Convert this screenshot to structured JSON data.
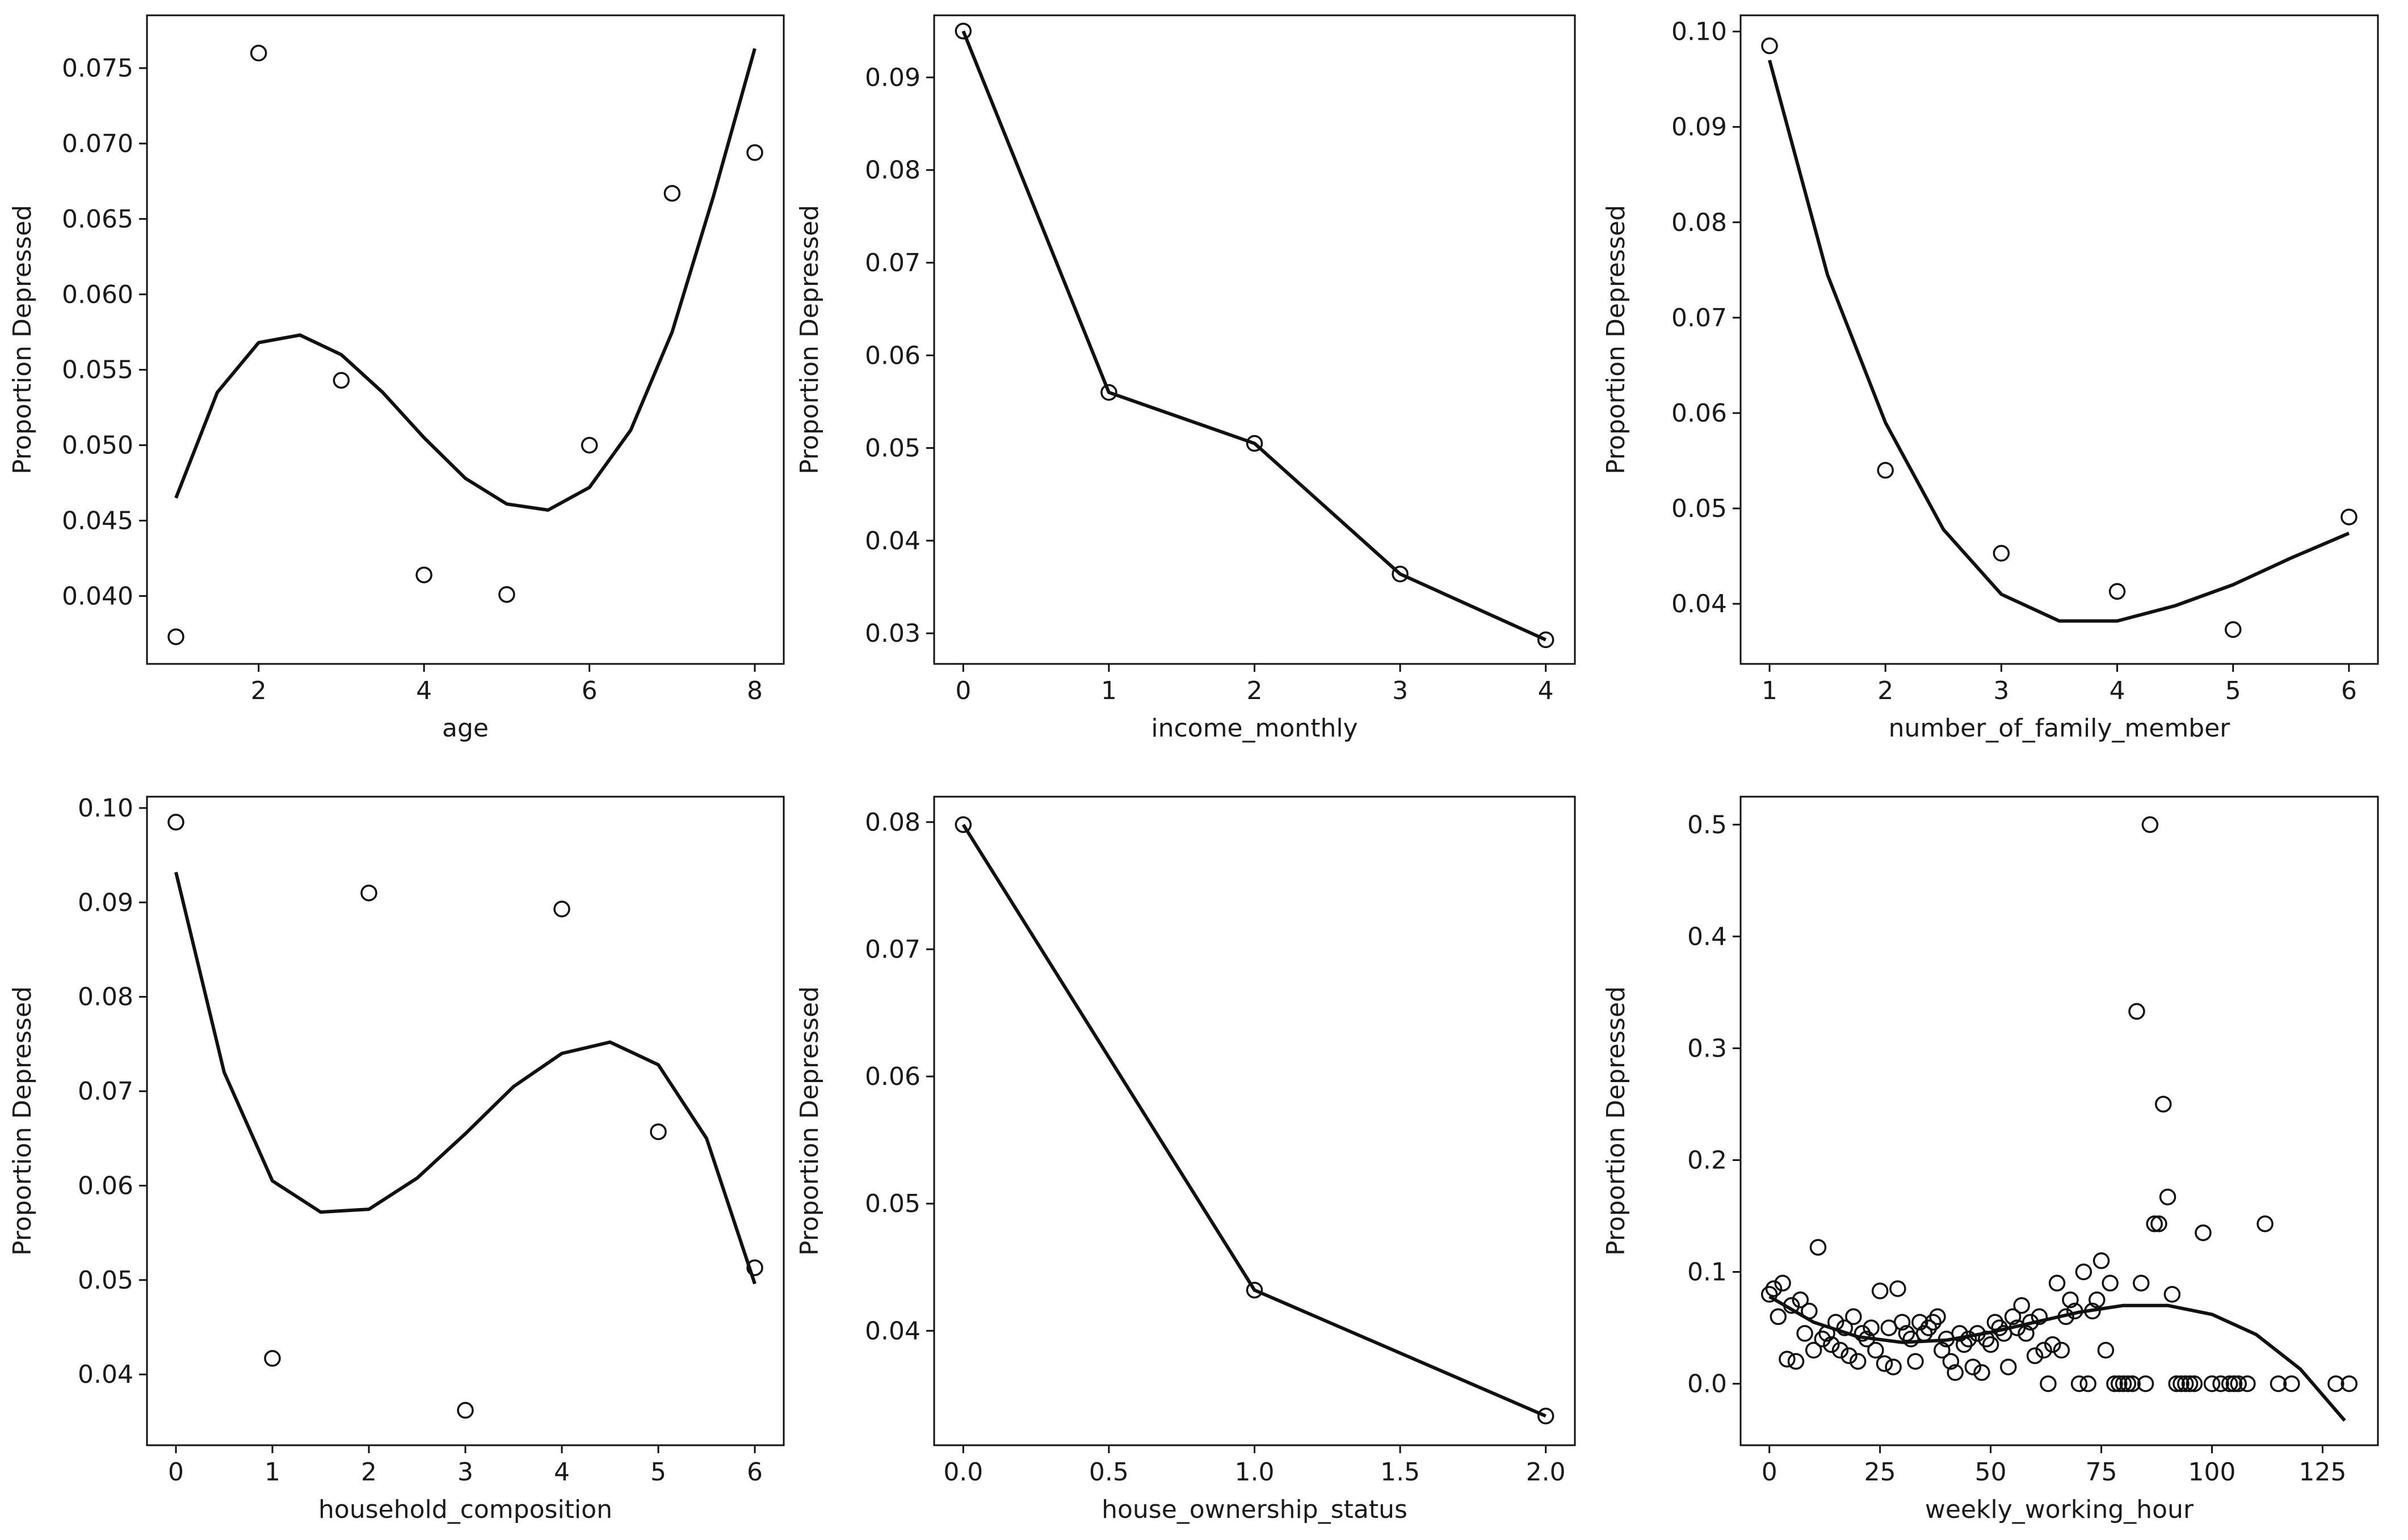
{
  "chart_data": [
    {
      "type": "scatter",
      "xlabel": "age",
      "ylabel": "Proportion Depressed",
      "xlim": [
        0.65,
        8.35
      ],
      "ylim": [
        0.0355,
        0.0785
      ],
      "xticks": [
        2,
        4,
        6,
        8
      ],
      "xtick_labels": [
        "2",
        "4",
        "6",
        "8"
      ],
      "yticks": [
        0.04,
        0.045,
        0.05,
        0.055,
        0.06,
        0.065,
        0.07,
        0.075
      ],
      "ytick_labels": [
        "0.040",
        "0.045",
        "0.050",
        "0.055",
        "0.060",
        "0.065",
        "0.070",
        "0.075"
      ],
      "points": {
        "x": [
          1,
          2,
          3,
          4,
          5,
          6,
          7,
          8
        ],
        "y": [
          0.0373,
          0.076,
          0.0543,
          0.0414,
          0.0401,
          0.05,
          0.0667,
          0.0694
        ]
      },
      "trend": {
        "kind": "polynomial fit",
        "x": [
          1,
          1.5,
          2,
          2.5,
          3,
          3.5,
          4,
          4.5,
          5,
          5.5,
          6,
          6.5,
          7,
          7.5,
          8
        ],
        "y": [
          0.0465,
          0.0535,
          0.0568,
          0.0573,
          0.056,
          0.0535,
          0.0505,
          0.0478,
          0.0461,
          0.0457,
          0.0472,
          0.051,
          0.0575,
          0.0665,
          0.0763
        ]
      }
    },
    {
      "type": "line",
      "xlabel": "income_monthly",
      "ylabel": "Proportion Depressed",
      "xlim": [
        -0.2,
        4.2
      ],
      "ylim": [
        0.0267,
        0.0967
      ],
      "xticks": [
        0,
        1,
        2,
        3,
        4
      ],
      "xtick_labels": [
        "0",
        "1",
        "2",
        "3",
        "4"
      ],
      "yticks": [
        0.03,
        0.04,
        0.05,
        0.06,
        0.07,
        0.08,
        0.09
      ],
      "ytick_labels": [
        "0.03",
        "0.04",
        "0.05",
        "0.06",
        "0.07",
        "0.08",
        "0.09"
      ],
      "points": {
        "x": [
          0,
          1,
          2,
          3,
          4
        ],
        "y": [
          0.095,
          0.056,
          0.0505,
          0.0364,
          0.0293
        ]
      },
      "trend": {
        "kind": "connected line",
        "x": [
          0,
          1,
          2,
          3,
          4
        ],
        "y": [
          0.095,
          0.056,
          0.0505,
          0.0364,
          0.0293
        ]
      }
    },
    {
      "type": "scatter",
      "xlabel": "number_of_family_member",
      "ylabel": "Proportion Depressed",
      "xlim": [
        0.75,
        6.25
      ],
      "ylim": [
        0.0337,
        0.1017
      ],
      "xticks": [
        1,
        2,
        3,
        4,
        5,
        6
      ],
      "xtick_labels": [
        "1",
        "2",
        "3",
        "4",
        "5",
        "6"
      ],
      "yticks": [
        0.04,
        0.05,
        0.06,
        0.07,
        0.08,
        0.09,
        0.1
      ],
      "ytick_labels": [
        "0.04",
        "0.05",
        "0.06",
        "0.07",
        "0.08",
        "0.09",
        "0.10"
      ],
      "points": {
        "x": [
          1,
          2,
          3,
          4,
          5,
          6
        ],
        "y": [
          0.0985,
          0.054,
          0.0453,
          0.0413,
          0.0373,
          0.0491
        ]
      },
      "trend": {
        "kind": "polynomial fit",
        "x": [
          1,
          1.5,
          2,
          2.5,
          3,
          3.5,
          4,
          4.5,
          5,
          5.5,
          6
        ],
        "y": [
          0.097,
          0.0745,
          0.059,
          0.0478,
          0.041,
          0.0382,
          0.0382,
          0.0398,
          0.042,
          0.0448,
          0.0474
        ]
      }
    },
    {
      "type": "scatter",
      "xlabel": "household_composition",
      "ylabel": "Proportion Depressed",
      "xlim": [
        -0.3,
        6.3
      ],
      "ylim": [
        0.0325,
        0.1012
      ],
      "xticks": [
        0,
        1,
        2,
        3,
        4,
        5,
        6
      ],
      "xtick_labels": [
        "0",
        "1",
        "2",
        "3",
        "4",
        "5",
        "6"
      ],
      "yticks": [
        0.04,
        0.05,
        0.06,
        0.07,
        0.08,
        0.09,
        0.1
      ],
      "ytick_labels": [
        "0.04",
        "0.05",
        "0.06",
        "0.07",
        "0.08",
        "0.09",
        "0.10"
      ],
      "points": {
        "x": [
          0,
          1,
          2,
          3,
          4,
          5,
          6
        ],
        "y": [
          0.0985,
          0.0417,
          0.091,
          0.0362,
          0.0893,
          0.0657,
          0.0513
        ]
      },
      "trend": {
        "kind": "polynomial fit",
        "x": [
          0,
          0.5,
          1,
          1.5,
          2,
          2.5,
          3,
          3.5,
          4,
          4.5,
          5,
          5.5,
          6
        ],
        "y": [
          0.0932,
          0.072,
          0.0605,
          0.0572,
          0.0575,
          0.0608,
          0.0655,
          0.0705,
          0.074,
          0.0752,
          0.0728,
          0.065,
          0.0496
        ]
      }
    },
    {
      "type": "line",
      "xlabel": "house_ownership_status",
      "ylabel": "Proportion Depressed",
      "xlim": [
        -0.1,
        2.1
      ],
      "ylim": [
        0.031,
        0.082
      ],
      "xticks": [
        0.0,
        0.5,
        1.0,
        1.5,
        2.0
      ],
      "xtick_labels": [
        "0.0",
        "0.5",
        "1.0",
        "1.5",
        "2.0"
      ],
      "yticks": [
        0.04,
        0.05,
        0.06,
        0.07,
        0.08
      ],
      "ytick_labels": [
        "0.04",
        "0.05",
        "0.06",
        "0.07",
        "0.08"
      ],
      "points": {
        "x": [
          0,
          1,
          2
        ],
        "y": [
          0.0798,
          0.0432,
          0.0333
        ]
      },
      "trend": {
        "kind": "connected line",
        "x": [
          0,
          1,
          2
        ],
        "y": [
          0.0798,
          0.0432,
          0.0333
        ]
      }
    },
    {
      "type": "scatter",
      "xlabel": "weekly_working_hour",
      "ylabel": "Proportion Depressed",
      "xlim": [
        -6.5,
        137.5
      ],
      "ylim": [
        -0.055,
        0.525
      ],
      "xticks": [
        0,
        25,
        50,
        75,
        100,
        125
      ],
      "xtick_labels": [
        "0",
        "25",
        "50",
        "75",
        "100",
        "125"
      ],
      "yticks": [
        0.0,
        0.1,
        0.2,
        0.3,
        0.4,
        0.5
      ],
      "ytick_labels": [
        "0.0",
        "0.1",
        "0.2",
        "0.3",
        "0.4",
        "0.5"
      ],
      "points": {
        "x": [
          0,
          1,
          2,
          3,
          4,
          5,
          6,
          7,
          8,
          9,
          10,
          11,
          12,
          13,
          14,
          15,
          16,
          17,
          18,
          19,
          20,
          21,
          22,
          23,
          24,
          25,
          26,
          27,
          28,
          29,
          30,
          31,
          32,
          33,
          34,
          35,
          36,
          37,
          38,
          39,
          40,
          41,
          42,
          43,
          44,
          45,
          46,
          47,
          48,
          49,
          50,
          51,
          52,
          53,
          54,
          55,
          56,
          57,
          58,
          59,
          60,
          61,
          62,
          63,
          64,
          65,
          66,
          67,
          68,
          69,
          70,
          71,
          72,
          73,
          74,
          75,
          76,
          77,
          78,
          79,
          80,
          81,
          82,
          83,
          84,
          85,
          86,
          87,
          88,
          89,
          90,
          91,
          92,
          93,
          94,
          95,
          96,
          98,
          100,
          102,
          104,
          105,
          106,
          108,
          112,
          115,
          118,
          128,
          131
        ],
        "y": [
          0.08,
          0.085,
          0.06,
          0.09,
          0.022,
          0.07,
          0.02,
          0.075,
          0.045,
          0.065,
          0.03,
          0.122,
          0.04,
          0.045,
          0.035,
          0.055,
          0.03,
          0.05,
          0.025,
          0.06,
          0.02,
          0.045,
          0.04,
          0.05,
          0.03,
          0.083,
          0.018,
          0.05,
          0.015,
          0.085,
          0.055,
          0.045,
          0.04,
          0.02,
          0.055,
          0.045,
          0.05,
          0.055,
          0.06,
          0.03,
          0.04,
          0.02,
          0.01,
          0.045,
          0.035,
          0.04,
          0.015,
          0.045,
          0.01,
          0.04,
          0.035,
          0.055,
          0.05,
          0.045,
          0.015,
          0.06,
          0.05,
          0.07,
          0.045,
          0.055,
          0.025,
          0.06,
          0.03,
          0.0,
          0.035,
          0.09,
          0.03,
          0.06,
          0.075,
          0.065,
          0.0,
          0.1,
          0.0,
          0.065,
          0.075,
          0.11,
          0.03,
          0.09,
          0.0,
          0.0,
          0.0,
          0.0,
          0.0,
          0.333,
          0.09,
          0.0,
          0.5,
          0.143,
          0.143,
          0.25,
          0.167,
          0.08,
          0.0,
          0.0,
          0.0,
          0.0,
          0.0,
          0.135,
          0.0,
          0.0,
          0.0,
          0.0,
          0.0,
          0.0,
          0.143,
          0.0,
          0.0,
          0.0,
          0.0
        ]
      },
      "trend": {
        "kind": "polynomial fit",
        "x": [
          0,
          10,
          20,
          30,
          40,
          50,
          60,
          70,
          80,
          90,
          100,
          110,
          120,
          130
        ],
        "y": [
          0.078,
          0.055,
          0.042,
          0.037,
          0.039,
          0.046,
          0.055,
          0.064,
          0.07,
          0.07,
          0.062,
          0.044,
          0.013,
          -0.033
        ]
      }
    }
  ]
}
